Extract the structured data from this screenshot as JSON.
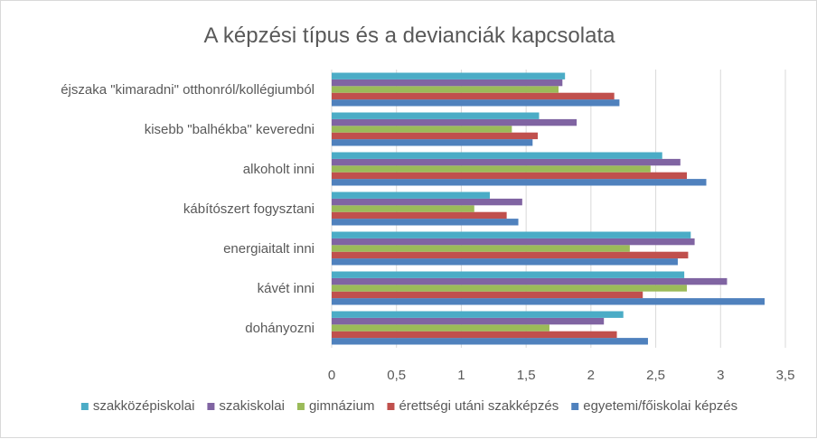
{
  "chart_data": {
    "type": "bar",
    "orientation": "horizontal",
    "title": "A képzési típus és a devianciák kapcsolata",
    "categories": [
      "dohányozni",
      "kávét inni",
      "energiaitalt inni",
      "kábítószert fogysztani",
      "alkoholt inni",
      "kisebb \"balhékba\" keveredni",
      "éjszaka \"kimaradni\" otthonról/kollégiumból"
    ],
    "series": [
      {
        "name": "egyetemi/főiskolai képzés",
        "color": "#4f81bd",
        "values": [
          2.44,
          3.34,
          2.67,
          1.44,
          2.89,
          1.55,
          2.22
        ]
      },
      {
        "name": "érettségi utáni szakképzés",
        "color": "#c0504d",
        "values": [
          2.2,
          2.4,
          2.75,
          1.35,
          2.74,
          1.59,
          2.18
        ]
      },
      {
        "name": "gimnázium",
        "color": "#9bbb59",
        "values": [
          1.68,
          2.74,
          2.3,
          1.1,
          2.46,
          1.39,
          1.75
        ]
      },
      {
        "name": "szakiskolai",
        "color": "#8064a2",
        "values": [
          2.1,
          3.05,
          2.8,
          1.47,
          2.69,
          1.89,
          1.78
        ]
      },
      {
        "name": "szakközépiskolai",
        "color": "#4bacc6",
        "values": [
          2.25,
          2.72,
          2.77,
          1.22,
          2.55,
          1.6,
          1.8
        ]
      }
    ],
    "xlim": [
      0,
      3.5
    ],
    "xticks": [
      "0",
      "0,5",
      "1",
      "1,5",
      "2",
      "2,5",
      "3",
      "3,5"
    ],
    "legend": {
      "position": "bottom",
      "order": [
        "szakközépiskolai",
        "szakiskolai",
        "gimnázium",
        "érettségi utáni szakképzés",
        "egyetemi/főiskolai képzés"
      ]
    },
    "grid": true
  }
}
